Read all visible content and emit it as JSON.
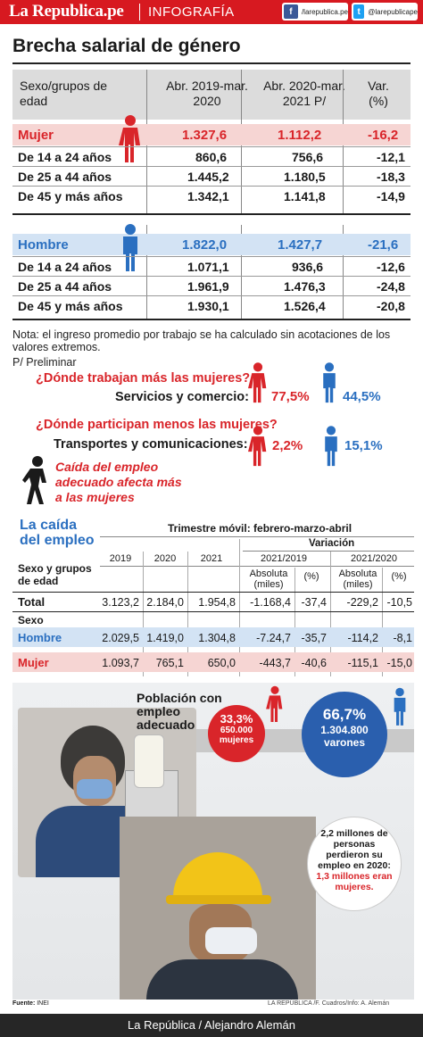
{
  "header": {
    "brand": "La Republica.pe",
    "section": "INFOGRAFÍA",
    "facebook_handle": "/larepublica.pe",
    "twitter_handle": "@larepublicape"
  },
  "title": "Brecha salarial de género",
  "table1": {
    "headers": [
      "Sexo/grupos de edad",
      "Abr. 2019-mar. 2020",
      "Abr. 2020-mar. 2021 P/",
      "Var. (%)"
    ],
    "mujer": {
      "label": "Mujer",
      "v2019": "1.327,6",
      "v2020": "1.112,2",
      "var": "-16,2",
      "rows": [
        {
          "label": "De 14 a 24 años",
          "v2019": "860,6",
          "v2020": "756,6",
          "var": "-12,1"
        },
        {
          "label": "De 25 a 44 años",
          "v2019": "1.445,2",
          "v2020": "1.180,5",
          "var": "-18,3"
        },
        {
          "label": "De 45 y más años",
          "v2019": "1.342,1",
          "v2020": "1.141,8",
          "var": "-14,9"
        }
      ]
    },
    "hombre": {
      "label": "Hombre",
      "v2019": "1.822,0",
      "v2020": "1.427,7",
      "var": "-21,6",
      "rows": [
        {
          "label": "De 14 a 24 años",
          "v2019": "1.071,1",
          "v2020": "936,6",
          "var": "-12,6"
        },
        {
          "label": "De 25 a 44 años",
          "v2019": "1.961,9",
          "v2020": "1.476,3",
          "var": "-24,8"
        },
        {
          "label": "De 45 y más años",
          "v2019": "1.930,1",
          "v2020": "1.526,4",
          "var": "-20,8"
        }
      ]
    },
    "note": "Nota: el ingreso promedio por trabajo se ha calculado sin acotaciones de los valores extremos.",
    "prelim": "P/ Preliminar"
  },
  "questions": {
    "q1": "¿Dónde trabajan más las mujeres?",
    "a1": "Servicios y comercio:",
    "a1_women": "77,5%",
    "a1_men": "44,5%",
    "q2": "¿Dónde participan menos las mujeres?",
    "a2": "Transportes y comunicaciones:",
    "a2_women": "2,2%",
    "a2_men": "15,1%",
    "caida": "Caída del empleo adecuado afecta más a las mujeres"
  },
  "table2": {
    "title": "La caída del empleo",
    "period": "Trimestre móvil: febrero-marzo-abril",
    "variacion": "Variación",
    "sexo_grupo": "Sexo y grupos de edad",
    "years": [
      "2019",
      "2020",
      "2021",
      "2021/2019",
      "2021/2020"
    ],
    "sub": [
      "Absoluta (miles)",
      "(%)",
      "Absoluta (miles)",
      "(%)"
    ],
    "sexo_label": "Sexo",
    "rows": [
      {
        "label": "Total",
        "values": [
          "3.123,2",
          "2.184,0",
          "1.954,8",
          "-1.168,4",
          "-37,4",
          "-229,2",
          "-10,5"
        ]
      },
      {
        "label": "Hombre",
        "values": [
          "2.029,5",
          "1.419,0",
          "1.304,8",
          "-7.24,7",
          "-35,7",
          "-114,2",
          "-8,1"
        ]
      },
      {
        "label": "Mujer",
        "values": [
          "1.093,7",
          "765,1",
          "650,0",
          "-443,7",
          "-40,6",
          "-115,1",
          "-15,0"
        ]
      }
    ]
  },
  "employment": {
    "title": "Población con empleo adecuado",
    "women_pct": "33,3%",
    "women_num": "650.000",
    "women_label": "mujeres",
    "men_pct": "66,7%",
    "men_num": "1.304.800",
    "men_label": "varones",
    "lost_text": "2,2 millones de personas perdieron su empleo en 2020:",
    "lost_highlight": "1,3 millones eran mujeres."
  },
  "footer": {
    "source_label": "Fuente:",
    "source": "INEI",
    "credits": "LA REPÚBLICA /F. Cuadros/Info: A. Alemán",
    "bar": "La República / Alejandro Alemán"
  },
  "colors": {
    "red": "#d9252a",
    "blue": "#2a6fc0",
    "pink_band": "#f6d5d3",
    "blue_band": "#d3e3f4"
  }
}
